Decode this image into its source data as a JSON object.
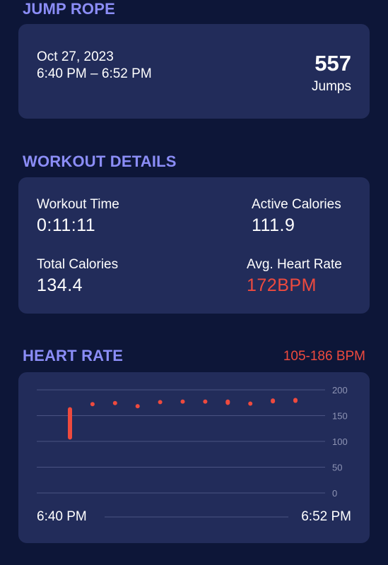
{
  "jump_rope": {
    "section_title": "JUMP ROPE",
    "date": "Oct 27, 2023",
    "time_range": "6:40 PM – 6:52 PM",
    "jumps_value": "557",
    "jumps_label": "Jumps"
  },
  "workout_details": {
    "section_title": "WORKOUT DETAILS",
    "workout_time_label": "Workout Time",
    "workout_time_value": "0:11:11",
    "active_calories_label": "Active Calories",
    "active_calories_value": "111.9",
    "total_calories_label": "Total Calories",
    "total_calories_value": "134.4",
    "avg_heart_rate_label": "Avg. Heart Rate",
    "avg_heart_rate_value": "172",
    "avg_heart_rate_unit": "BPM"
  },
  "heart_rate": {
    "section_title": "HEART RATE",
    "range_text": "105-186 BPM",
    "start_label": "6:40 PM",
    "end_label": "6:52 PM"
  },
  "colors": {
    "accent": "#8b8df7",
    "heart": "#ee4a3e",
    "card": "#222c5a",
    "background": "#0d1638"
  },
  "chart_data": {
    "type": "scatter",
    "title": "HEART RATE",
    "xlabel": "",
    "ylabel": "",
    "ylim": [
      0,
      200
    ],
    "yticks": [
      "200",
      "150",
      "100",
      "50",
      "0"
    ],
    "grid": true,
    "points": [
      {
        "x": 0,
        "low": 105,
        "high": 165
      },
      {
        "x": 1,
        "low": 170,
        "high": 175
      },
      {
        "x": 2,
        "low": 173,
        "high": 177
      },
      {
        "x": 3,
        "low": 166,
        "high": 171
      },
      {
        "x": 4,
        "low": 175,
        "high": 179
      },
      {
        "x": 5,
        "low": 177,
        "high": 180
      },
      {
        "x": 6,
        "low": 175,
        "high": 180
      },
      {
        "x": 7,
        "low": 172,
        "high": 180
      },
      {
        "x": 8,
        "low": 172,
        "high": 176
      },
      {
        "x": 9,
        "low": 175,
        "high": 182
      },
      {
        "x": 10,
        "low": 176,
        "high": 183
      }
    ]
  }
}
